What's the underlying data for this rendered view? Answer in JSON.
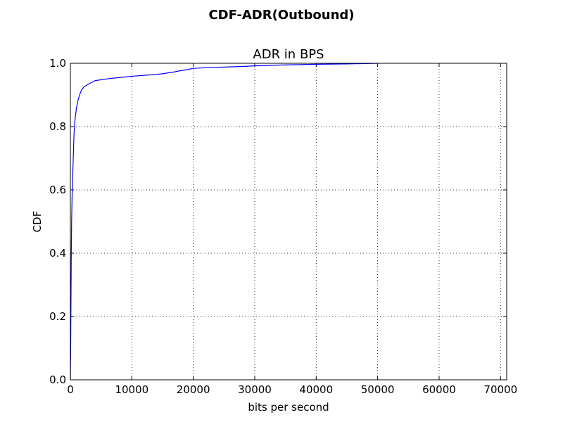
{
  "figure": {
    "suptitle": "CDF-ADR(Outbound)"
  },
  "chart_data": {
    "type": "line",
    "title": "ADR in BPS",
    "xlabel": "bits per second",
    "ylabel": "CDF",
    "xlim": [
      0,
      71000
    ],
    "ylim": [
      0,
      1.0
    ],
    "grid": true,
    "x_ticks": [
      0,
      10000,
      20000,
      30000,
      40000,
      50000,
      60000,
      70000
    ],
    "x_tick_labels": [
      "0",
      "10000",
      "20000",
      "30000",
      "40000",
      "50000",
      "60000",
      "70000"
    ],
    "y_ticks": [
      0.0,
      0.2,
      0.4,
      0.6,
      0.8,
      1.0
    ],
    "y_tick_labels": [
      "0.0",
      "0.2",
      "0.4",
      "0.6",
      "0.8",
      "1.0"
    ],
    "series": [
      {
        "color": "#0000ff",
        "x": [
          0,
          50,
          100,
          150,
          200,
          300,
          400,
          500,
          600,
          700,
          800,
          1000,
          1200,
          1500,
          1800,
          2200,
          2600,
          3000,
          3500,
          4000,
          5000,
          6000,
          7000,
          8000,
          9000,
          10000,
          12000,
          14000,
          15000,
          16000,
          17000,
          18000,
          19000,
          20000,
          22000,
          25000,
          28000,
          30000,
          35000,
          40000,
          45000,
          50000
        ],
        "y": [
          0.0,
          0.1,
          0.25,
          0.4,
          0.5,
          0.6,
          0.66,
          0.72,
          0.78,
          0.81,
          0.83,
          0.86,
          0.88,
          0.9,
          0.915,
          0.925,
          0.93,
          0.935,
          0.94,
          0.945,
          0.948,
          0.951,
          0.953,
          0.955,
          0.957,
          0.959,
          0.962,
          0.965,
          0.967,
          0.97,
          0.973,
          0.977,
          0.98,
          0.984,
          0.986,
          0.988,
          0.99,
          0.992,
          0.995,
          0.997,
          0.998,
          1.0
        ]
      }
    ]
  }
}
